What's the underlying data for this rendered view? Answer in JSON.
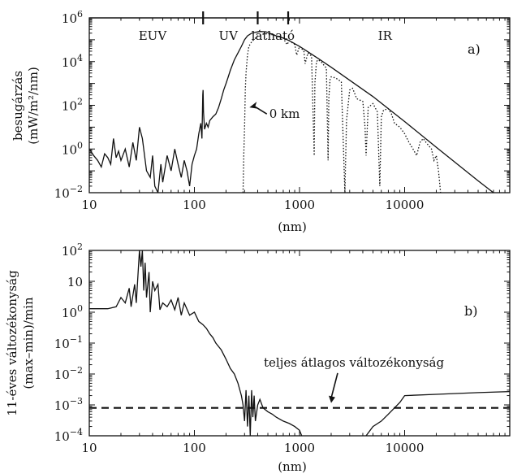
{
  "chart_data": [
    {
      "type": "line",
      "panel_label": "a)",
      "xlabel": "(nm)",
      "ylabel_line1": "besugárzás",
      "ylabel_line2": "(mW/m²/nm)",
      "x_scale": "log",
      "y_scale": "log",
      "xlim": [
        10,
        100000
      ],
      "ylim": [
        0.01,
        1000000
      ],
      "x_ticks": [
        {
          "v": 10,
          "label": "10"
        },
        {
          "v": 100,
          "label": "100"
        },
        {
          "v": 1000,
          "label": "1000"
        },
        {
          "v": 10000,
          "label": "10000"
        }
      ],
      "y_ticks": [
        {
          "exp": -2,
          "base": "10",
          "sup": "−2"
        },
        {
          "exp": 0,
          "base": "10",
          "sup": "0"
        },
        {
          "exp": 2,
          "base": "10",
          "sup": "2"
        },
        {
          "exp": 4,
          "base": "10",
          "sup": "4"
        },
        {
          "exp": 6,
          "base": "10",
          "sup": "6"
        }
      ],
      "band_dividers_nm": [
        121,
        400,
        780
      ],
      "bands": [
        {
          "label": "EUV",
          "x": 40
        },
        {
          "label": "UV",
          "x": 210
        },
        {
          "label": "látható",
          "x": 560
        },
        {
          "label": "IR",
          "x": 6500
        }
      ],
      "annotations": [
        {
          "text": "0 km",
          "x": 1050,
          "y": 40,
          "arrow_to": [
            300,
            80
          ]
        }
      ],
      "series": [
        {
          "style": "solid",
          "x": [
            10,
            11,
            12,
            13,
            14,
            15,
            16,
            17,
            18,
            19,
            20,
            22,
            24,
            26,
            28,
            30,
            32,
            35,
            38,
            40,
            42,
            45,
            48,
            50,
            55,
            60,
            65,
            70,
            75,
            80,
            85,
            90,
            95,
            100,
            105,
            110,
            115,
            118,
            120,
            121,
            122,
            125,
            130,
            135,
            140,
            150,
            160,
            170,
            180,
            190,
            200,
            210,
            220,
            240,
            260,
            280,
            300,
            320,
            350,
            380,
            400,
            420,
            450,
            480,
            500,
            550,
            600,
            700,
            800,
            1000,
            1500,
            2000,
            3000,
            5000,
            10000,
            20000,
            50000,
            70000
          ],
          "y": [
            1,
            0.5,
            0.3,
            0.15,
            0.6,
            0.4,
            0.2,
            3,
            0.4,
            0.8,
            0.3,
            1,
            0.15,
            2,
            0.3,
            10,
            3,
            0.1,
            0.05,
            0.5,
            0.02,
            0.01,
            0.2,
            0.03,
            0.5,
            0.1,
            1,
            0.2,
            0.05,
            0.3,
            0.1,
            0.02,
            0.2,
            0.5,
            1,
            5,
            15,
            3,
            300,
            500,
            50,
            8,
            15,
            10,
            20,
            30,
            40,
            80,
            200,
            500,
            1000,
            2000,
            4000,
            12000,
            25000,
            50000,
            100000,
            150000,
            200000,
            220000,
            230000,
            240000,
            235000,
            230000,
            210000,
            180000,
            150000,
            120000,
            90000,
            50000,
            14000,
            5500,
            1400,
            250,
            18,
            1.2,
            0.035,
            0.01
          ]
        },
        {
          "style": "dotted",
          "x": [
            290,
            292,
            295,
            300,
            305,
            310,
            320,
            330,
            350,
            400,
            450,
            500,
            550,
            600,
            700,
            760,
            800,
            900,
            940,
            1000,
            1100,
            1130,
            1200,
            1300,
            1380,
            1400,
            1450,
            1500,
            1600,
            1800,
            1870,
            1900,
            1950,
            2000,
            2200,
            2500,
            2700,
            2800,
            3000,
            3200,
            3500,
            4000,
            4200,
            4300,
            4500,
            5000,
            5500,
            5800,
            6000,
            6300,
            7000,
            7500,
            8000,
            9000,
            10000,
            11000,
            12000,
            13000,
            14000,
            15000,
            16000,
            18000,
            19000,
            20000,
            21000,
            22000
          ],
          "y": [
            0.01,
            0.05,
            0.5,
            10,
            500,
            3000,
            20000,
            50000,
            80000,
            150000,
            180000,
            190000,
            170000,
            150000,
            120000,
            60000,
            90000,
            60000,
            20000,
            50000,
            30000,
            8000,
            25000,
            18000,
            0.5,
            1000,
            10000,
            12000,
            10000,
            5000,
            0.3,
            200,
            1500,
            2000,
            1800,
            1200,
            0.01,
            20,
            500,
            600,
            200,
            150,
            10,
            0.5,
            80,
            120,
            50,
            0.02,
            30,
            60,
            70,
            40,
            15,
            10,
            5,
            2,
            1,
            0.5,
            2,
            3,
            2,
            1,
            0.3,
            0.5,
            0.1,
            0.01
          ]
        }
      ]
    },
    {
      "type": "line",
      "panel_label": "b)",
      "xlabel": "(nm)",
      "ylabel_line1": "11-éves változékonyság",
      "ylabel_line2": "(max–min)/min",
      "x_scale": "log",
      "y_scale": "log",
      "xlim": [
        10,
        100000
      ],
      "ylim": [
        0.0001,
        100
      ],
      "x_ticks": [
        {
          "v": 10,
          "label": "10"
        },
        {
          "v": 100,
          "label": "100"
        },
        {
          "v": 1000,
          "label": "1000"
        },
        {
          "v": 10000,
          "label": "10000"
        }
      ],
      "y_ticks": [
        {
          "exp": -4,
          "base": "10",
          "sup": "−4"
        },
        {
          "exp": -3,
          "base": "10",
          "sup": "−3"
        },
        {
          "exp": -2,
          "base": "10",
          "sup": "−2"
        },
        {
          "exp": -1,
          "base": "10",
          "sup": "−1"
        },
        {
          "exp": 0,
          "base": "10",
          "sup": "0"
        },
        {
          "exp": 1,
          "base": "10",
          "sup": ""
        },
        {
          "exp": 2,
          "base": "10",
          "sup": "2"
        }
      ],
      "reference_line": {
        "label": "teljes átlagos változékonyság",
        "y": 0.0008,
        "label_x": 600,
        "label_y": 0.025,
        "arrow_to": [
          2000,
          0.001
        ]
      },
      "series": [
        {
          "style": "solid",
          "x": [
            10,
            15,
            18,
            20,
            22,
            24,
            25,
            27,
            28,
            30,
            31,
            32,
            33,
            34,
            35,
            37,
            38,
            40,
            42,
            45,
            47,
            50,
            55,
            60,
            65,
            70,
            75,
            80,
            90,
            100,
            110,
            120,
            130,
            140,
            150,
            160,
            180,
            200,
            220,
            240,
            260,
            280,
            290,
            300,
            310,
            320,
            330,
            340,
            350,
            360,
            370,
            380,
            400,
            420,
            450,
            500,
            550,
            600,
            700,
            800,
            900,
            1000,
            1050
          ],
          "y": [
            1.3,
            1.3,
            1.5,
            3,
            2,
            6,
            1.5,
            8,
            2,
            100,
            30,
            100,
            5,
            40,
            3,
            20,
            1,
            10,
            5,
            8,
            1.2,
            2,
            1.5,
            2.5,
            1.2,
            3,
            0.8,
            2,
            0.8,
            1,
            0.5,
            0.4,
            0.3,
            0.2,
            0.15,
            0.1,
            0.06,
            0.03,
            0.015,
            0.01,
            0.005,
            0.002,
            0.001,
            0.0003,
            0.003,
            0.0002,
            0.002,
            0.0001,
            0.003,
            0.0004,
            0.002,
            0.0003,
            0.001,
            0.0015,
            0.0008,
            0.0006,
            0.0005,
            0.0004,
            0.0003,
            0.00025,
            0.0002,
            0.00015,
            0.0001
          ]
        },
        {
          "style": "solid",
          "x": [
            4300,
            5000,
            6000,
            7000,
            8000,
            9000,
            10000,
            20000,
            50000,
            100000
          ],
          "y": [
            0.0001,
            0.0002,
            0.0003,
            0.0005,
            0.0008,
            0.0012,
            0.002,
            0.0022,
            0.0025,
            0.0027
          ]
        }
      ]
    }
  ]
}
